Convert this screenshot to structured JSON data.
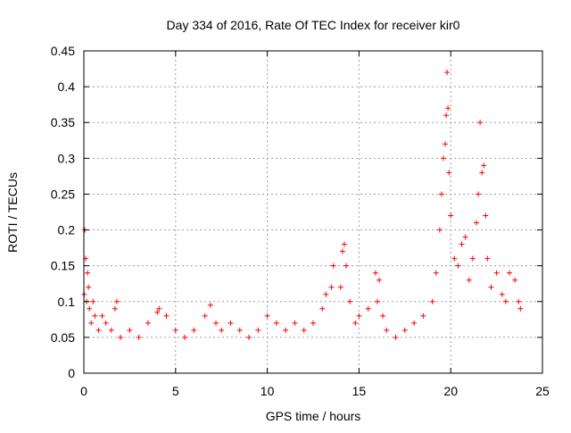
{
  "chart_data": {
    "type": "scatter",
    "title": "Day 334 of 2016, Rate Of TEC Index for receiver kir0",
    "xlabel": "GPS time / hours",
    "ylabel": "ROTI / TECUs",
    "xlim": [
      0,
      25
    ],
    "ylim": [
      0,
      0.45
    ],
    "x_ticks": [
      0,
      5,
      10,
      15,
      20,
      25
    ],
    "x_tick_labels": [
      "0",
      "5",
      "10",
      "15",
      "20",
      "25"
    ],
    "y_ticks": [
      0,
      0.05,
      0.1,
      0.15,
      0.2,
      0.25,
      0.3,
      0.35,
      0.4,
      0.45
    ],
    "y_tick_labels": [
      "0",
      "0.05",
      "0.1",
      "0.15",
      "0.2",
      "0.25",
      "0.3",
      "0.35",
      "0.4",
      "0.45"
    ],
    "grid": true,
    "marker": "+",
    "marker_color": "#ff0000",
    "series": [
      {
        "x": [
          0.02,
          0.05,
          0.1,
          0.15,
          0.2,
          0.25,
          0.3,
          0.4,
          0.5,
          0.6,
          0.8,
          1.0,
          1.2,
          1.5,
          1.7,
          1.8,
          2.0,
          2.5,
          3.0,
          3.5,
          4.0,
          4.1,
          4.5,
          5.0,
          5.5,
          6.0,
          6.6,
          6.9,
          7.2,
          7.5,
          8.0,
          8.5,
          9.0,
          9.5,
          10.0,
          10.5,
          11.0,
          11.5,
          12.0,
          12.5,
          13.0,
          13.2,
          13.5,
          13.6,
          14.0,
          14.1,
          14.2,
          14.3,
          14.5,
          14.8,
          15.0,
          15.5,
          15.9,
          16.0,
          16.1,
          16.3,
          16.5,
          17.0,
          17.5,
          18.0,
          18.5,
          19.0,
          19.2,
          19.4,
          19.5,
          19.6,
          19.7,
          19.75,
          19.8,
          19.85,
          19.9,
          20.0,
          20.2,
          20.4,
          20.6,
          20.8,
          21.0,
          21.2,
          21.4,
          21.5,
          21.6,
          21.7,
          21.8,
          21.9,
          22.0,
          22.2,
          22.5,
          22.8,
          23.0,
          23.2,
          23.5,
          23.7,
          23.8
        ],
        "y": [
          0.11,
          0.2,
          0.16,
          0.1,
          0.14,
          0.12,
          0.09,
          0.07,
          0.1,
          0.08,
          0.06,
          0.08,
          0.07,
          0.06,
          0.09,
          0.1,
          0.05,
          0.06,
          0.05,
          0.07,
          0.085,
          0.09,
          0.08,
          0.06,
          0.05,
          0.06,
          0.08,
          0.095,
          0.07,
          0.06,
          0.07,
          0.06,
          0.05,
          0.06,
          0.08,
          0.07,
          0.06,
          0.07,
          0.06,
          0.07,
          0.09,
          0.11,
          0.12,
          0.15,
          0.12,
          0.17,
          0.18,
          0.15,
          0.1,
          0.07,
          0.08,
          0.09,
          0.14,
          0.1,
          0.13,
          0.08,
          0.06,
          0.05,
          0.06,
          0.07,
          0.08,
          0.1,
          0.14,
          0.2,
          0.25,
          0.3,
          0.32,
          0.36,
          0.42,
          0.37,
          0.28,
          0.22,
          0.16,
          0.15,
          0.18,
          0.19,
          0.13,
          0.16,
          0.21,
          0.25,
          0.35,
          0.28,
          0.29,
          0.22,
          0.16,
          0.12,
          0.14,
          0.11,
          0.1,
          0.14,
          0.13,
          0.1,
          0.09
        ]
      }
    ]
  }
}
